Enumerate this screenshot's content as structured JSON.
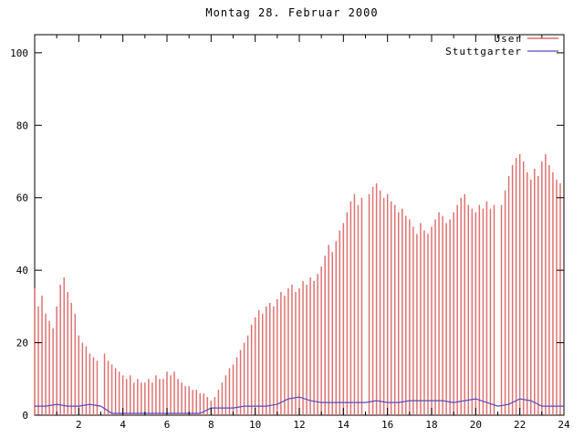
{
  "title": "Montag 28. Februar 2000",
  "chart_data": {
    "type": "bar",
    "title": "Montag 28. Februar 2000",
    "xlabel": "",
    "ylabel": "",
    "xlim": [
      0,
      24
    ],
    "ylim": [
      0,
      105
    ],
    "xticks": [
      2,
      4,
      6,
      8,
      10,
      12,
      14,
      16,
      18,
      20,
      22,
      24
    ],
    "yticks": [
      0,
      20,
      40,
      60,
      80,
      100
    ],
    "grid": false,
    "legend_position": "top-right",
    "x_unit": "hour of day",
    "series": [
      {
        "name": "User",
        "type": "impulses",
        "color": "#dd6b6b",
        "interval_minutes": 10,
        "values": [
          35,
          30,
          33,
          28,
          26,
          24,
          30,
          36,
          38,
          34,
          31,
          28,
          22,
          20,
          19,
          17,
          16,
          15,
          0,
          17,
          15,
          14,
          13,
          12,
          11,
          10,
          11,
          9,
          10,
          9,
          9,
          10,
          9,
          11,
          10,
          10,
          12,
          11,
          12,
          10,
          9,
          8,
          8,
          7,
          7,
          6,
          6,
          5,
          4,
          5,
          7,
          9,
          11,
          13,
          14,
          16,
          18,
          20,
          22,
          25,
          27,
          29,
          28,
          30,
          31,
          30,
          32,
          34,
          33,
          35,
          36,
          34,
          35,
          37,
          36,
          38,
          37,
          39,
          41,
          44,
          47,
          45,
          48,
          51,
          53,
          56,
          59,
          61,
          58,
          60,
          0,
          61,
          63,
          64,
          62,
          60,
          61,
          59,
          58,
          56,
          57,
          55,
          54,
          52,
          50,
          53,
          51,
          50,
          52,
          54,
          56,
          55,
          53,
          54,
          56,
          58,
          60,
          61,
          58,
          57,
          56,
          58,
          57,
          59,
          57,
          58,
          0,
          58,
          62,
          66,
          69,
          71,
          72,
          70,
          67,
          65,
          68,
          66,
          70,
          72,
          69,
          67,
          65,
          64
        ]
      },
      {
        "name": "Stuttgarter",
        "type": "line",
        "color": "#4e4ec4",
        "interval_minutes": 30,
        "values": [
          2.5,
          2.5,
          3,
          2.5,
          2.5,
          3,
          2.5,
          0.5,
          0.5,
          0.5,
          0.5,
          0.5,
          0.5,
          0.5,
          0.5,
          0.5,
          2,
          2,
          2,
          2.5,
          2.5,
          2.5,
          3,
          4.5,
          5,
          4,
          3.5,
          3.5,
          3.5,
          3.5,
          3.5,
          4,
          3.5,
          3.5,
          4,
          4,
          4,
          4,
          3.5,
          4,
          4.5,
          3.5,
          2.5,
          3,
          4.5,
          4,
          2.5,
          2.5,
          2.5
        ]
      }
    ]
  }
}
